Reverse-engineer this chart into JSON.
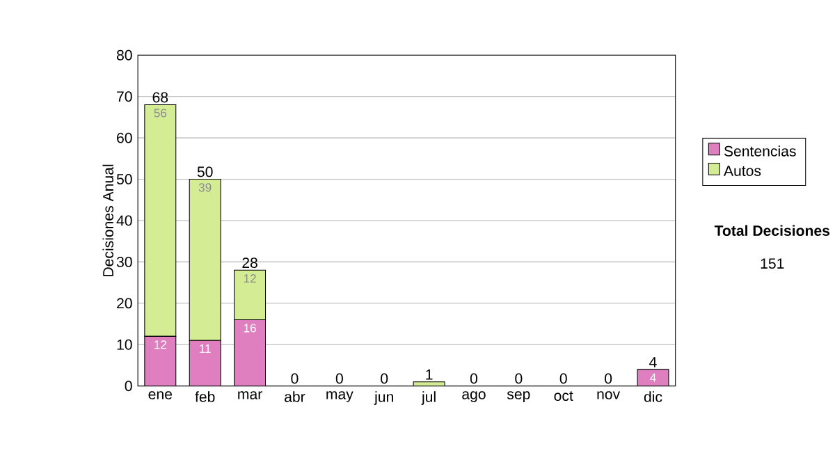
{
  "chart_data": {
    "type": "bar",
    "stacked": true,
    "ylabel": "Decisiones Anual",
    "categories": [
      "ene",
      "feb",
      "mar",
      "abr",
      "may",
      "jun",
      "jul",
      "ago",
      "sep",
      "oct",
      "nov",
      "dic"
    ],
    "series": [
      {
        "name": "Sentencias",
        "color": "#e07fc0",
        "values": [
          12,
          11,
          16,
          0,
          0,
          0,
          0,
          0,
          0,
          0,
          0,
          4
        ],
        "value_labels": [
          "12",
          "11",
          "16",
          null,
          null,
          null,
          null,
          null,
          null,
          null,
          null,
          "4"
        ]
      },
      {
        "name": "Autos",
        "color": "#d4ec94",
        "values": [
          56,
          39,
          12,
          0,
          0,
          0,
          1,
          0,
          0,
          0,
          0,
          0
        ],
        "value_labels": [
          "56",
          "39",
          "12",
          null,
          null,
          null,
          null,
          null,
          null,
          null,
          null,
          null
        ]
      }
    ],
    "totals": [
      "68",
      "50",
      "28",
      "0",
      "0",
      "0",
      "1",
      "0",
      "0",
      "0",
      "0",
      "4"
    ],
    "ylim": [
      0,
      80
    ],
    "yticks": [
      0,
      10,
      20,
      30,
      40,
      50,
      60,
      70,
      80
    ],
    "grid": "y",
    "legend": "right",
    "annotations": [
      "Total Decisiones",
      "151"
    ]
  }
}
